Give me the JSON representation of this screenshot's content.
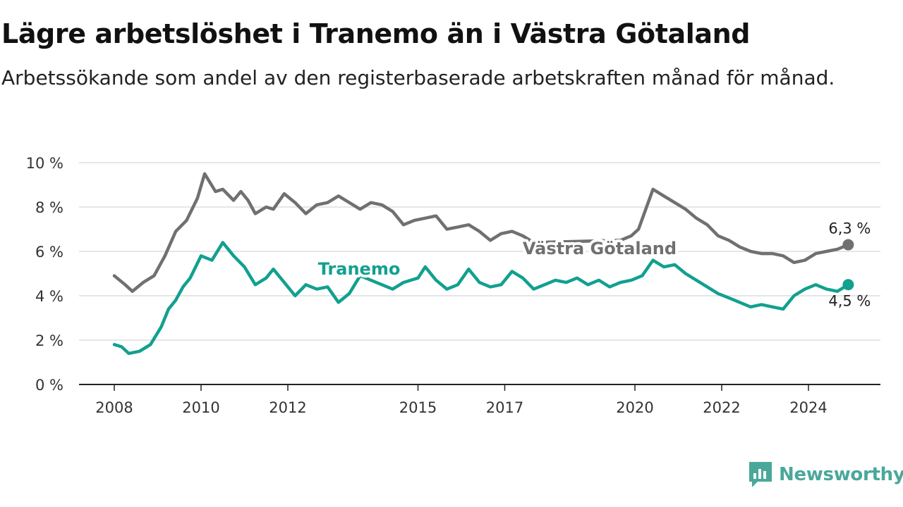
{
  "title": "Lägre arbetslöshet i Tranemo än i Västra Götaland",
  "subtitle": "Arbetssökande som andel av den registerbaserade arbetskraften månad för månad.",
  "brand": "Newsworthy",
  "colors": {
    "tranemo": "#12a090",
    "vastra_gotaland": "#707070",
    "grid": "#dddddd",
    "brand": "#4aa89a"
  },
  "chart_data": {
    "type": "line",
    "x_ticks": [
      "2008",
      "2010",
      "2012",
      "2015",
      "2017",
      "2020",
      "2022",
      "2024"
    ],
    "y_ticks": [
      "0 %",
      "2 %",
      "4 %",
      "6 %",
      "8 %",
      "10 %"
    ],
    "ylim": [
      0,
      10
    ],
    "xlim": [
      "2008-01",
      "2025-02"
    ],
    "grid": true,
    "series": [
      {
        "name": "Västra Götaland",
        "color": "#707070",
        "end_label": "6,3 %",
        "points": [
          [
            "2008-01",
            4.9
          ],
          [
            "2008-04",
            4.5
          ],
          [
            "2008-06",
            4.2
          ],
          [
            "2008-09",
            4.6
          ],
          [
            "2008-12",
            4.9
          ],
          [
            "2009-03",
            5.8
          ],
          [
            "2009-06",
            6.9
          ],
          [
            "2009-09",
            7.4
          ],
          [
            "2009-12",
            8.4
          ],
          [
            "2010-02",
            9.5
          ],
          [
            "2010-05",
            8.7
          ],
          [
            "2010-07",
            8.8
          ],
          [
            "2010-10",
            8.3
          ],
          [
            "2010-12",
            8.7
          ],
          [
            "2011-02",
            8.3
          ],
          [
            "2011-04",
            7.7
          ],
          [
            "2011-07",
            8.0
          ],
          [
            "2011-09",
            7.9
          ],
          [
            "2011-12",
            8.6
          ],
          [
            "2012-03",
            8.2
          ],
          [
            "2012-06",
            7.7
          ],
          [
            "2012-09",
            8.1
          ],
          [
            "2012-12",
            8.2
          ],
          [
            "2013-03",
            8.5
          ],
          [
            "2013-06",
            8.2
          ],
          [
            "2013-09",
            7.9
          ],
          [
            "2013-12",
            8.2
          ],
          [
            "2014-03",
            8.1
          ],
          [
            "2014-06",
            7.8
          ],
          [
            "2014-09",
            7.2
          ],
          [
            "2014-12",
            7.4
          ],
          [
            "2015-03",
            7.5
          ],
          [
            "2015-06",
            7.6
          ],
          [
            "2015-09",
            7.0
          ],
          [
            "2015-12",
            7.1
          ],
          [
            "2016-03",
            7.2
          ],
          [
            "2016-06",
            6.9
          ],
          [
            "2016-09",
            6.5
          ],
          [
            "2016-12",
            6.8
          ],
          [
            "2017-03",
            6.9
          ],
          [
            "2017-06",
            6.7
          ],
          [
            "2017-09",
            6.4
          ],
          [
            "2019-09",
            6.5
          ],
          [
            "2019-12",
            6.7
          ],
          [
            "2020-02",
            7.0
          ],
          [
            "2020-06",
            8.8
          ],
          [
            "2020-09",
            8.5
          ],
          [
            "2020-12",
            8.2
          ],
          [
            "2021-03",
            7.9
          ],
          [
            "2021-06",
            7.5
          ],
          [
            "2021-09",
            7.2
          ],
          [
            "2021-12",
            6.7
          ],
          [
            "2022-03",
            6.5
          ],
          [
            "2022-06",
            6.2
          ],
          [
            "2022-09",
            6.0
          ],
          [
            "2022-12",
            5.9
          ],
          [
            "2023-03",
            5.9
          ],
          [
            "2023-06",
            5.8
          ],
          [
            "2023-09",
            5.5
          ],
          [
            "2023-12",
            5.6
          ],
          [
            "2024-03",
            5.9
          ],
          [
            "2024-06",
            6.0
          ],
          [
            "2024-09",
            6.1
          ],
          [
            "2024-12",
            6.3
          ]
        ]
      },
      {
        "name": "Tranemo",
        "color": "#12a090",
        "end_label": "4,5 %",
        "points": [
          [
            "2008-01",
            1.8
          ],
          [
            "2008-03",
            1.7
          ],
          [
            "2008-05",
            1.4
          ],
          [
            "2008-08",
            1.5
          ],
          [
            "2008-11",
            1.8
          ],
          [
            "2009-02",
            2.6
          ],
          [
            "2009-04",
            3.4
          ],
          [
            "2009-06",
            3.8
          ],
          [
            "2009-08",
            4.4
          ],
          [
            "2009-10",
            4.8
          ],
          [
            "2010-01",
            5.8
          ],
          [
            "2010-04",
            5.6
          ],
          [
            "2010-07",
            6.4
          ],
          [
            "2010-10",
            5.8
          ],
          [
            "2011-01",
            5.3
          ],
          [
            "2011-04",
            4.5
          ],
          [
            "2011-07",
            4.8
          ],
          [
            "2011-09",
            5.2
          ],
          [
            "2011-12",
            4.6
          ],
          [
            "2012-03",
            4.0
          ],
          [
            "2012-06",
            4.5
          ],
          [
            "2012-09",
            4.3
          ],
          [
            "2012-12",
            4.4
          ],
          [
            "2013-03",
            3.7
          ],
          [
            "2013-06",
            4.1
          ],
          [
            "2013-09",
            4.9
          ],
          [
            "2014-03",
            4.5
          ],
          [
            "2014-06",
            4.3
          ],
          [
            "2014-09",
            4.6
          ],
          [
            "2015-01",
            4.8
          ],
          [
            "2015-03",
            5.3
          ],
          [
            "2015-06",
            4.7
          ],
          [
            "2015-09",
            4.3
          ],
          [
            "2015-12",
            4.5
          ],
          [
            "2016-03",
            5.2
          ],
          [
            "2016-06",
            4.6
          ],
          [
            "2016-09",
            4.4
          ],
          [
            "2016-12",
            4.5
          ],
          [
            "2017-03",
            5.1
          ],
          [
            "2017-06",
            4.8
          ],
          [
            "2017-09",
            4.3
          ],
          [
            "2017-12",
            4.5
          ],
          [
            "2018-03",
            4.7
          ],
          [
            "2018-06",
            4.6
          ],
          [
            "2018-09",
            4.8
          ],
          [
            "2018-12",
            4.5
          ],
          [
            "2019-03",
            4.7
          ],
          [
            "2019-06",
            4.4
          ],
          [
            "2019-09",
            4.6
          ],
          [
            "2019-12",
            4.7
          ],
          [
            "2020-03",
            4.9
          ],
          [
            "2020-06",
            5.6
          ],
          [
            "2020-09",
            5.3
          ],
          [
            "2020-12",
            5.4
          ],
          [
            "2021-03",
            5.0
          ],
          [
            "2021-06",
            4.7
          ],
          [
            "2021-09",
            4.4
          ],
          [
            "2021-12",
            4.1
          ],
          [
            "2022-03",
            3.9
          ],
          [
            "2022-06",
            3.7
          ],
          [
            "2022-09",
            3.5
          ],
          [
            "2022-12",
            3.6
          ],
          [
            "2023-03",
            3.5
          ],
          [
            "2023-06",
            3.4
          ],
          [
            "2023-09",
            4.0
          ],
          [
            "2023-12",
            4.3
          ],
          [
            "2024-03",
            4.5
          ],
          [
            "2024-06",
            4.3
          ],
          [
            "2024-09",
            4.2
          ],
          [
            "2024-12",
            4.5
          ]
        ]
      }
    ]
  }
}
